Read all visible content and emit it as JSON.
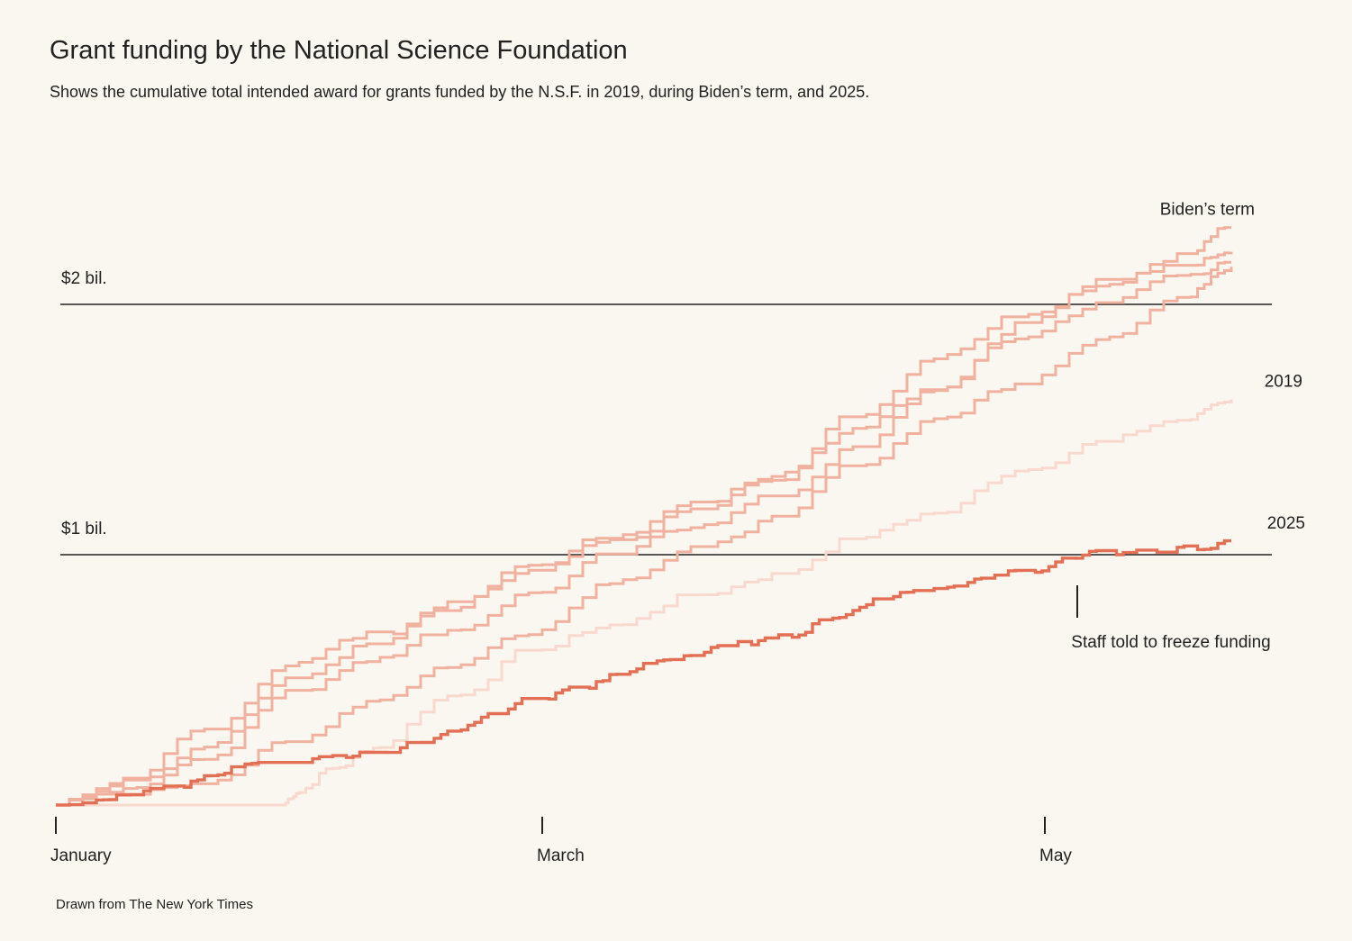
{
  "header": {
    "title": "Grant funding by the National Science Foundation",
    "subtitle": "Shows the cumulative total intended award for grants funded by the N.S.F. in 2019, during Biden’s term, and 2025."
  },
  "footer": {
    "source": "Drawn from The New York Times"
  },
  "colors": {
    "background": "#faf7f0",
    "biden": "#f1b19f",
    "y2019": "#f9d8cd",
    "y2025": "#e36f54",
    "gridline": "#222222"
  },
  "annotation": {
    "label": "Staff told to freeze funding",
    "day": 126
  },
  "chart_data": {
    "type": "line",
    "title": "Grant funding by the National Science Foundation",
    "x_unit": "day of year",
    "xlim": [
      0,
      150
    ],
    "ylim": [
      0,
      2.35
    ],
    "y_unit": "billion dollars",
    "grid": "horizontal reference lines at $1 bil. and $2 bil.",
    "yticks": [
      {
        "value": 1,
        "label": "$1 bil."
      },
      {
        "value": 2,
        "label": "$2 bil."
      }
    ],
    "xticks": [
      {
        "day": 0,
        "label": "January"
      },
      {
        "day": 60,
        "label": "March"
      },
      {
        "day": 122,
        "label": "May"
      }
    ],
    "series": [
      {
        "name": "Biden’s term",
        "group": "biden",
        "show_label": true,
        "stroke_width": 3,
        "x": [
          0,
          10,
          20,
          30,
          40,
          50,
          60,
          70,
          80,
          90,
          100,
          110,
          120,
          130,
          140,
          145
        ],
        "y": [
          0,
          0.09,
          0.3,
          0.57,
          0.68,
          0.79,
          0.96,
          1.08,
          1.2,
          1.33,
          1.56,
          1.8,
          1.96,
          2.08,
          2.2,
          2.3
        ]
      },
      {
        "name": "",
        "group": "biden",
        "show_label": false,
        "stroke_width": 3,
        "x": [
          0,
          10,
          20,
          30,
          40,
          50,
          60,
          70,
          80,
          90,
          100,
          110,
          120,
          130,
          140,
          145
        ],
        "y": [
          0,
          0.1,
          0.25,
          0.5,
          0.64,
          0.8,
          0.93,
          1.05,
          1.18,
          1.3,
          1.51,
          1.67,
          1.92,
          2.1,
          2.15,
          2.21
        ]
      },
      {
        "name": "",
        "group": "biden",
        "show_label": false,
        "stroke_width": 3,
        "x": [
          0,
          10,
          20,
          30,
          40,
          50,
          60,
          70,
          80,
          90,
          100,
          110,
          120,
          130,
          140,
          145
        ],
        "y": [
          0,
          0.07,
          0.2,
          0.45,
          0.59,
          0.7,
          0.85,
          1.0,
          1.12,
          1.23,
          1.43,
          1.67,
          1.87,
          2.0,
          2.12,
          2.16
        ]
      },
      {
        "name": "",
        "group": "biden",
        "show_label": false,
        "stroke_width": 3,
        "x": [
          0,
          10,
          20,
          30,
          40,
          50,
          60,
          70,
          80,
          90,
          100,
          110,
          120,
          130,
          140,
          145
        ],
        "y": [
          0,
          0.04,
          0.1,
          0.25,
          0.42,
          0.56,
          0.7,
          0.9,
          1.02,
          1.14,
          1.36,
          1.55,
          1.68,
          1.87,
          2.03,
          2.15
        ]
      },
      {
        "name": "2019",
        "group": "2019",
        "show_label": true,
        "stroke_width": 3,
        "x": [
          0,
          10,
          20,
          28,
          30,
          35,
          40,
          50,
          60,
          70,
          80,
          90,
          100,
          110,
          120,
          130,
          140,
          145
        ],
        "y": [
          0,
          0,
          0,
          0,
          0.05,
          0.15,
          0.23,
          0.44,
          0.62,
          0.72,
          0.84,
          0.92,
          1.07,
          1.17,
          1.34,
          1.45,
          1.54,
          1.62
        ]
      },
      {
        "name": "2025",
        "group": "2025",
        "show_label": true,
        "stroke_width": 3.4,
        "x": [
          0,
          5,
          10,
          15,
          20,
          25,
          30,
          35,
          40,
          45,
          50,
          55,
          60,
          65,
          70,
          75,
          80,
          85,
          90,
          95,
          100,
          105,
          110,
          115,
          120,
          125,
          130,
          135,
          140,
          145
        ],
        "y": [
          0,
          0.02,
          0.04,
          0.07,
          0.12,
          0.17,
          0.17,
          0.19,
          0.21,
          0.25,
          0.3,
          0.36,
          0.42,
          0.46,
          0.52,
          0.58,
          0.61,
          0.64,
          0.67,
          0.73,
          0.8,
          0.85,
          0.87,
          0.9,
          0.93,
          0.98,
          1.0,
          1.01,
          1.02,
          1.04
        ]
      }
    ]
  }
}
